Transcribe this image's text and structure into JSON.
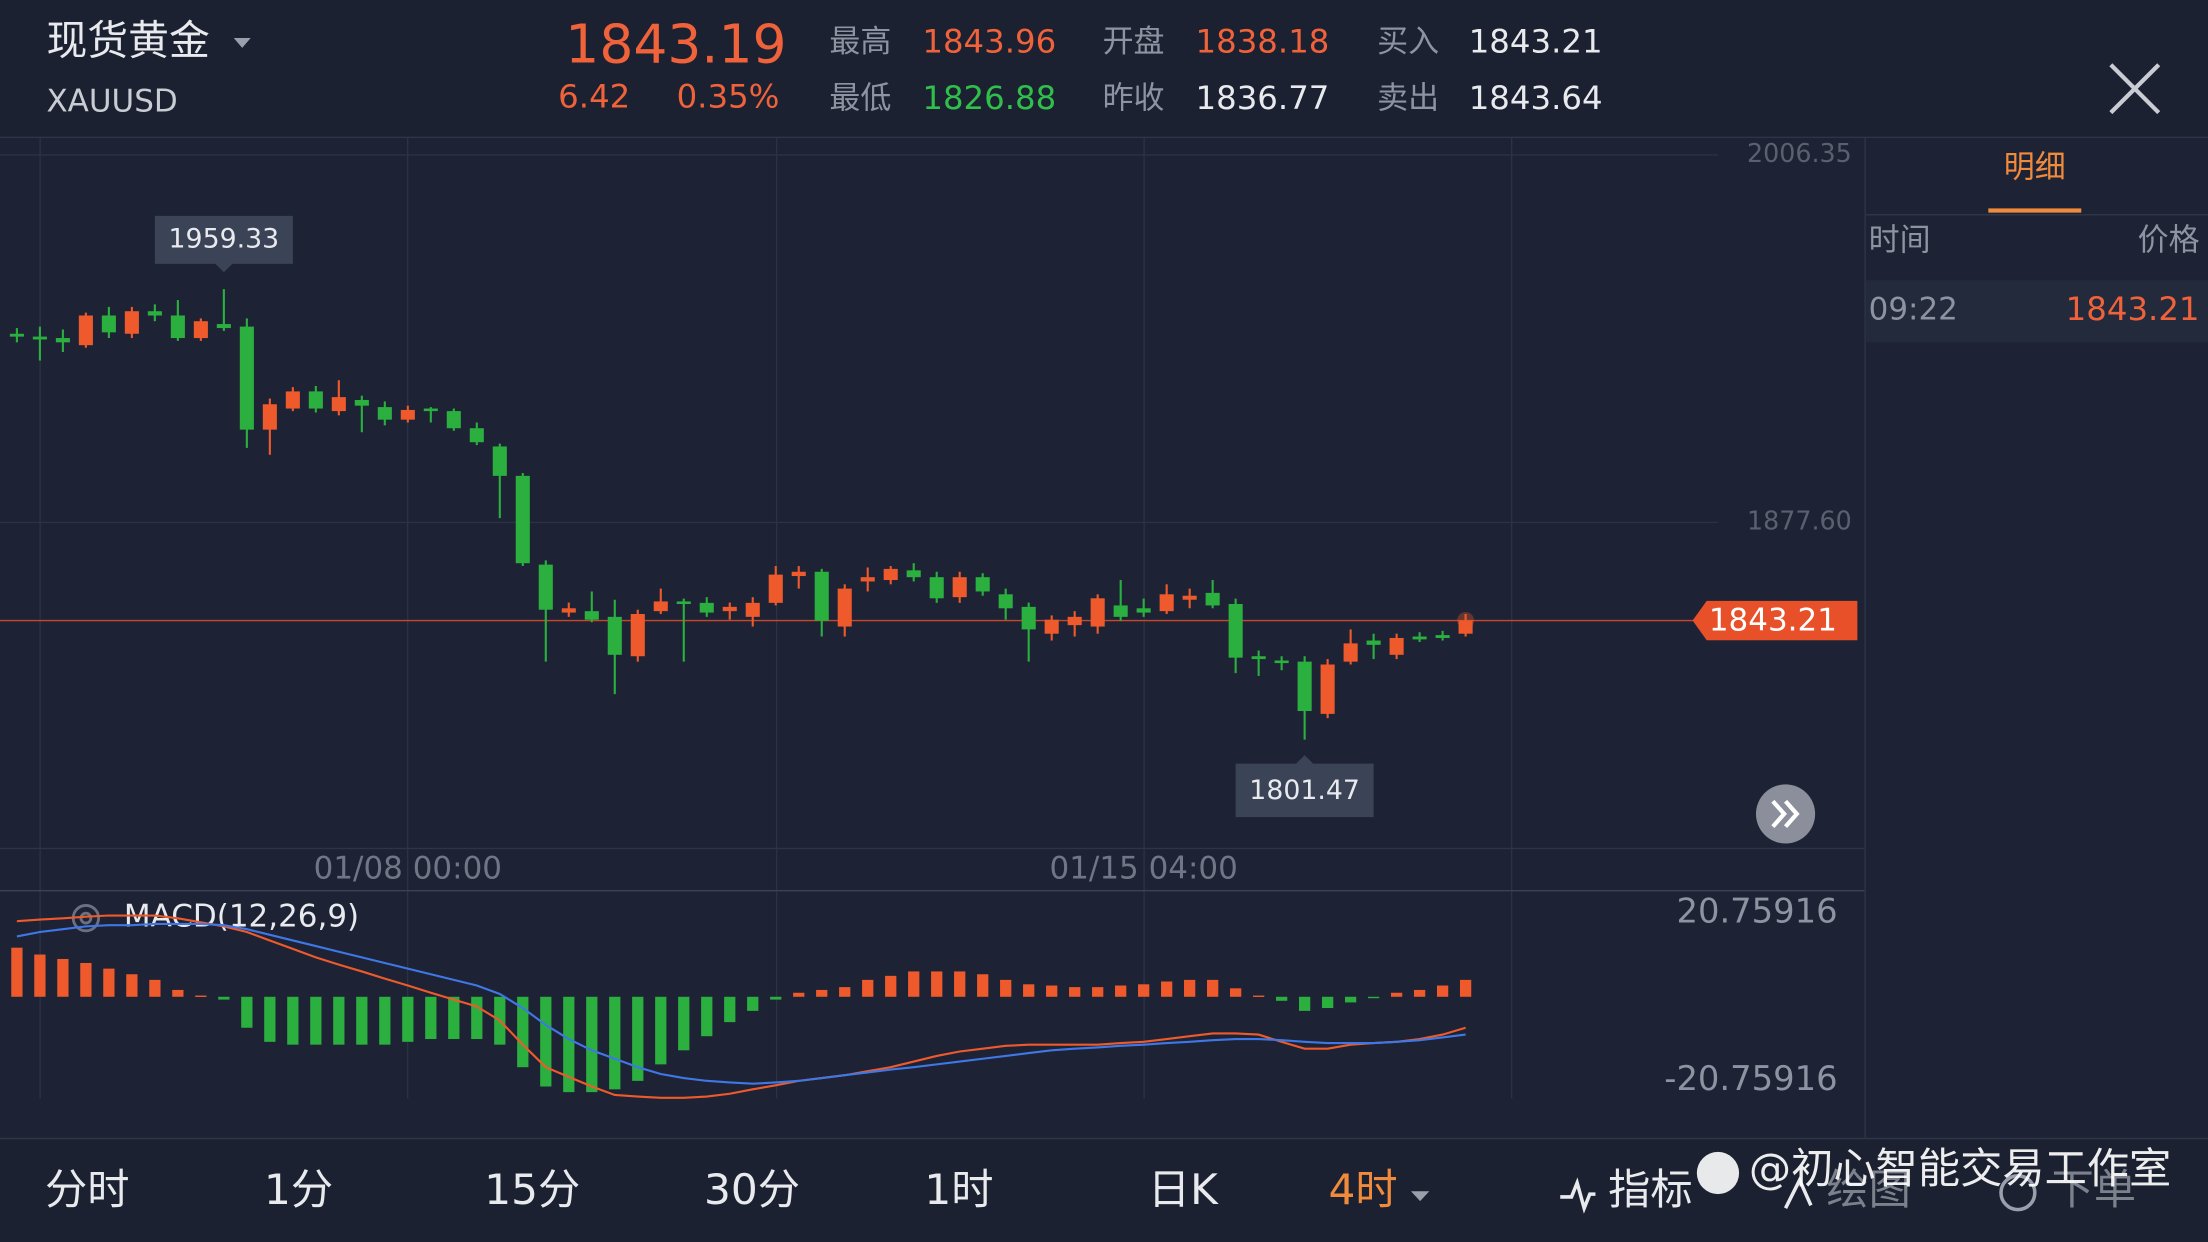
{
  "header": {
    "name": "现货黄金",
    "symbol": "XAUUSD",
    "price": "1843.19",
    "change": "6.42",
    "change_pct": "0.35%",
    "stats": [
      {
        "label": "最高",
        "value": "1843.96"
      },
      {
        "label": "最低",
        "value": "1826.88"
      },
      {
        "label": "开盘",
        "value": "1838.18"
      },
      {
        "label": "昨收",
        "value": "1836.77"
      },
      {
        "label": "买入",
        "value": "1843.21"
      },
      {
        "label": "卖出",
        "value": "1843.64"
      }
    ]
  },
  "detail_panel": {
    "tab": "明细",
    "columns": [
      "时间",
      "价格"
    ],
    "rows": [
      [
        "09:22",
        "1843.21"
      ]
    ]
  },
  "chart_data": [
    {
      "type": "candlestick",
      "categories": [
        null,
        null,
        null,
        null,
        null,
        null,
        null,
        null,
        null,
        null,
        null,
        null,
        null,
        null,
        null,
        null,
        null,
        "01/08 00:00",
        null,
        null,
        null,
        null,
        null,
        null,
        null,
        null,
        null,
        null,
        null,
        null,
        null,
        null,
        null,
        null,
        null,
        null,
        null,
        null,
        null,
        null,
        null,
        null,
        null,
        null,
        null,
        null,
        null,
        null,
        null,
        "01/15 04:00",
        null,
        null,
        null,
        null,
        null,
        null,
        null,
        null,
        null,
        null,
        null,
        null,
        null,
        null
      ],
      "open": [
        1943.7,
        1942.7,
        1942.2,
        1939.7,
        1950.1,
        1943.7,
        1951.6,
        1950.1,
        1942.2,
        1947.1,
        1946.2,
        1910.1,
        1917.5,
        1923.5,
        1916.6,
        1920.5,
        1918.0,
        1913.6,
        1917.5,
        1916.6,
        1910.6,
        1904.2,
        1893.9,
        1862.8,
        1846.0,
        1846.5,
        1844.5,
        1830.7,
        1846.5,
        1849.9,
        1849.4,
        1846.5,
        1844.5,
        1849.4,
        1858.8,
        1860.3,
        1841.1,
        1856.9,
        1857.4,
        1860.8,
        1858.4,
        1851.4,
        1858.4,
        1852.4,
        1848.0,
        1838.6,
        1841.6,
        1841.1,
        1848.5,
        1847.5,
        1846.5,
        1850.5,
        1852.9,
        1849.0,
        1830.7,
        1829.2,
        1828.8,
        1810.5,
        1828.8,
        1836.2,
        1831.2,
        1837.6,
        1838.1,
        1838.6
      ],
      "high": [
        1945.7,
        1946.2,
        1945.2,
        1951.1,
        1953.1,
        1953.1,
        1954.0,
        1955.5,
        1949.1,
        1959.33,
        1949.1,
        1921.0,
        1925.0,
        1925.4,
        1927.4,
        1922.0,
        1920.0,
        1918.5,
        1918.0,
        1917.5,
        1912.6,
        1905.2,
        1894.9,
        1864.3,
        1849.5,
        1853.4,
        1850.5,
        1847.0,
        1854.4,
        1850.9,
        1851.4,
        1849.5,
        1851.4,
        1862.3,
        1862.3,
        1861.3,
        1855.9,
        1861.8,
        1862.3,
        1863.3,
        1860.3,
        1860.3,
        1859.8,
        1854.4,
        1849.5,
        1845.0,
        1846.5,
        1852.4,
        1857.4,
        1850.9,
        1855.9,
        1854.4,
        1857.4,
        1850.9,
        1832.7,
        1830.7,
        1830.7,
        1829.7,
        1840.1,
        1838.6,
        1838.6,
        1839.1,
        1839.6,
        1845.5
      ],
      "low": [
        1940.7,
        1934.3,
        1937.3,
        1938.8,
        1942.2,
        1942.2,
        1948.1,
        1941.2,
        1941.2,
        1944.7,
        1903.7,
        1901.3,
        1916.6,
        1916.1,
        1915.1,
        1909.2,
        1911.6,
        1912.6,
        1912.6,
        1909.7,
        1904.7,
        1879.1,
        1862.3,
        1828.8,
        1844.5,
        1842.6,
        1817.4,
        1828.8,
        1845.5,
        1828.8,
        1844.5,
        1843.5,
        1841.1,
        1848.5,
        1854.4,
        1837.6,
        1837.6,
        1853.4,
        1855.9,
        1856.9,
        1849.4,
        1849.4,
        1851.9,
        1843.5,
        1828.8,
        1836.2,
        1837.6,
        1838.6,
        1843.0,
        1844.5,
        1845.5,
        1847.5,
        1847.5,
        1824.8,
        1823.8,
        1825.8,
        1801.47,
        1809.0,
        1827.8,
        1829.7,
        1829.7,
        1835.7,
        1836.2,
        1837.6
      ],
      "close": [
        1942.7,
        1941.7,
        1940.7,
        1950.1,
        1944.2,
        1951.6,
        1950.1,
        1942.2,
        1948.1,
        1945.7,
        1910.1,
        1919.0,
        1923.5,
        1917.5,
        1921.5,
        1918.5,
        1913.6,
        1917.0,
        1916.6,
        1910.6,
        1905.7,
        1893.9,
        1863.3,
        1847.0,
        1847.5,
        1843.5,
        1831.2,
        1845.5,
        1849.9,
        1849.0,
        1846.0,
        1848.0,
        1849.4,
        1859.3,
        1860.3,
        1843.1,
        1854.4,
        1858.4,
        1861.3,
        1858.4,
        1851.0,
        1858.4,
        1853.4,
        1847.5,
        1840.1,
        1843.5,
        1844.5,
        1851.0,
        1844.5,
        1846.0,
        1852.4,
        1851.9,
        1848.5,
        1830.2,
        1829.7,
        1828.3,
        1811.5,
        1827.8,
        1835.2,
        1834.7,
        1837.1,
        1836.6,
        1837.1,
        1843.21
      ],
      "up_color": "#ef5a2c",
      "down_color": "#2bb03f",
      "ylim": [
        1763.6,
        2012.3
      ],
      "yticks": [
        2006.35,
        {
          "value": 1877.6,
          "label": "1877.60"
        }
      ],
      "last_price": 1843.21,
      "high_marker": 1959.33,
      "low_marker": 1801.47
    },
    {
      "type": "macd",
      "title": "MACD(12,26,9)",
      "ylim": [
        -34,
        25.5
      ],
      "yticks": [
        20.75916,
        -20.75916
      ],
      "series": [
        {
          "color": "#ef5a2c",
          "values": [
            18.8,
            19.2,
            19.5,
            19.9,
            20.2,
            20.2,
            20.2,
            19.5,
            18.5,
            17.5,
            16.1,
            14.0,
            11.9,
            9.8,
            8.0,
            6.3,
            4.5,
            2.8,
            1.0,
            -0.7,
            -2.4,
            -5.9,
            -11.9,
            -17.5,
            -19.9,
            -22.3,
            -24.4,
            -24.8,
            -25.1,
            -25.1,
            -24.8,
            -24.1,
            -23.0,
            -22.0,
            -20.9,
            -20.2,
            -19.5,
            -18.5,
            -17.5,
            -16.1,
            -14.7,
            -13.6,
            -12.9,
            -12.2,
            -11.9,
            -11.9,
            -11.9,
            -11.9,
            -11.5,
            -11.2,
            -10.5,
            -9.8,
            -9.1,
            -9.1,
            -9.4,
            -11.2,
            -12.9,
            -12.9,
            -11.9,
            -11.5,
            -11.2,
            -10.5,
            -9.4,
            -7.7
          ]
        },
        {
          "color": "#3f78e6",
          "values": [
            15.0,
            16.1,
            16.8,
            17.5,
            17.8,
            17.8,
            18.1,
            18.1,
            18.1,
            17.8,
            16.8,
            15.4,
            14.0,
            12.6,
            11.2,
            9.8,
            8.4,
            7.0,
            5.6,
            4.2,
            2.8,
            0.7,
            -2.8,
            -7.0,
            -10.5,
            -13.3,
            -15.4,
            -17.5,
            -19.2,
            -20.2,
            -20.9,
            -21.3,
            -21.6,
            -21.3,
            -20.9,
            -20.2,
            -19.5,
            -18.8,
            -18.1,
            -17.5,
            -16.8,
            -16.1,
            -15.4,
            -14.7,
            -14.0,
            -13.3,
            -12.9,
            -12.6,
            -12.2,
            -11.9,
            -11.5,
            -11.2,
            -10.8,
            -10.5,
            -10.5,
            -10.8,
            -11.2,
            -11.5,
            -11.5,
            -11.5,
            -11.2,
            -10.8,
            -10.1,
            -9.4
          ]
        }
      ],
      "histogram": {
        "up_color": "#ef5a2c",
        "down_color": "#2bb03f",
        "values": [
          12.2,
          10.5,
          9.4,
          8.4,
          7.0,
          5.6,
          4.2,
          1.7,
          0.3,
          -0.7,
          -7.7,
          -11.2,
          -11.9,
          -11.9,
          -11.9,
          -11.9,
          -11.9,
          -11.2,
          -10.5,
          -10.5,
          -10.5,
          -11.9,
          -17.5,
          -22.3,
          -23.7,
          -23.7,
          -23.0,
          -20.9,
          -16.8,
          -13.3,
          -9.8,
          -6.3,
          -3.5,
          -0.7,
          1.0,
          1.7,
          2.4,
          4.2,
          5.2,
          6.3,
          6.3,
          6.3,
          5.6,
          4.2,
          3.1,
          2.8,
          2.4,
          2.4,
          2.8,
          3.1,
          3.8,
          4.2,
          4.2,
          2.1,
          0.3,
          -1.0,
          -3.5,
          -2.8,
          -1.4,
          -0.3,
          1.0,
          1.7,
          2.8,
          4.2
        ]
      }
    }
  ],
  "toolbar": {
    "periods": [
      "分时",
      "1分",
      "15分",
      "30分",
      "1时",
      "日K",
      "4时"
    ],
    "active": 6,
    "tools": [
      "指标",
      "绘图",
      "下单"
    ]
  },
  "watermark": "@初心智能交易工作室"
}
